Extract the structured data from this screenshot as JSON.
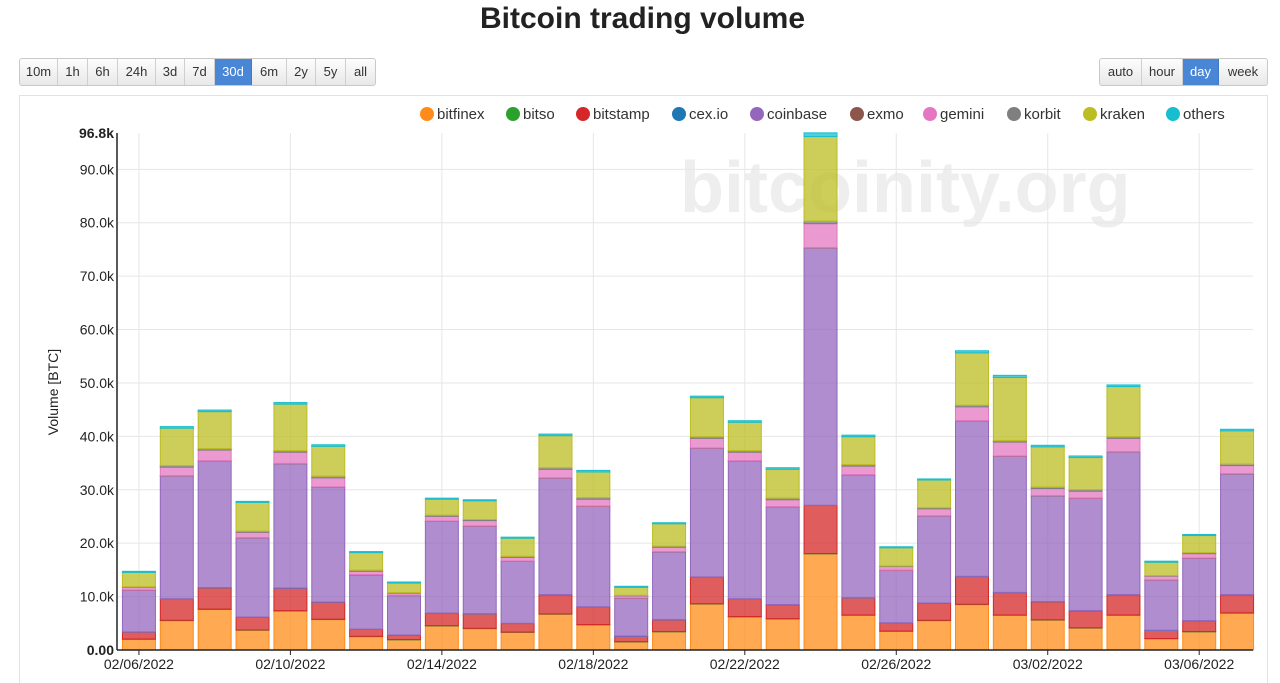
{
  "title": "Bitcoin trading volume",
  "period_buttons": [
    {
      "label": "10m",
      "active": false
    },
    {
      "label": "1h",
      "active": false
    },
    {
      "label": "6h",
      "active": false
    },
    {
      "label": "24h",
      "active": false
    },
    {
      "label": "3d",
      "active": false
    },
    {
      "label": "7d",
      "active": false
    },
    {
      "label": "30d",
      "active": true
    },
    {
      "label": "6m",
      "active": false
    },
    {
      "label": "2y",
      "active": false
    },
    {
      "label": "5y",
      "active": false
    },
    {
      "label": "all",
      "active": false
    }
  ],
  "aggregation_buttons": [
    {
      "label": "auto",
      "active": false
    },
    {
      "label": "hour",
      "active": false
    },
    {
      "label": "day",
      "active": true
    },
    {
      "label": "week",
      "active": false
    }
  ],
  "watermark": "bitcoinity.org",
  "chart_data": {
    "type": "bar",
    "stacked": true,
    "ylabel": "Volume [BTC]",
    "ylim": [
      0,
      96800
    ],
    "y_ticks": [
      "0.00",
      "10.0k",
      "20.0k",
      "30.0k",
      "40.0k",
      "50.0k",
      "60.0k",
      "70.0k",
      "80.0k",
      "90.0k",
      "96.8k"
    ],
    "x_tick_labels": [
      "02/06/2022",
      "02/10/2022",
      "02/14/2022",
      "02/18/2022",
      "02/22/2022",
      "02/26/2022",
      "03/02/2022",
      "03/06/2022"
    ],
    "grid": true,
    "legend_position": "top",
    "categories": [
      "2022-02-06",
      "2022-02-07",
      "2022-02-08",
      "2022-02-09",
      "2022-02-10",
      "2022-02-11",
      "2022-02-12",
      "2022-02-13",
      "2022-02-14",
      "2022-02-15",
      "2022-02-16",
      "2022-02-17",
      "2022-02-18",
      "2022-02-19",
      "2022-02-20",
      "2022-02-21",
      "2022-02-22",
      "2022-02-23",
      "2022-02-24",
      "2022-02-25",
      "2022-02-26",
      "2022-02-27",
      "2022-02-28",
      "2022-03-01",
      "2022-03-02",
      "2022-03-03",
      "2022-03-04",
      "2022-03-05",
      "2022-03-06",
      "2022-03-07"
    ],
    "series": [
      {
        "name": "bitfinex",
        "color": "#ff8c1a",
        "values": [
          2000,
          5500,
          7600,
          3700,
          7300,
          5700,
          2500,
          1900,
          4500,
          4000,
          3300,
          6700,
          4700,
          1500,
          3400,
          8600,
          6200,
          5800,
          18000,
          6500,
          3500,
          5500,
          8500,
          6500,
          5600,
          4100,
          6500,
          2100,
          3400,
          6900
        ]
      },
      {
        "name": "bitso",
        "color": "#2ca02c",
        "values": [
          50,
          50,
          50,
          50,
          50,
          50,
          50,
          50,
          50,
          50,
          50,
          50,
          50,
          50,
          50,
          50,
          50,
          50,
          50,
          50,
          50,
          50,
          50,
          50,
          50,
          50,
          50,
          50,
          50,
          50
        ]
      },
      {
        "name": "bitstamp",
        "color": "#d62728",
        "values": [
          1300,
          4000,
          4000,
          2400,
          4200,
          3200,
          1300,
          800,
          2300,
          2700,
          1600,
          3600,
          3300,
          1000,
          2200,
          5000,
          3300,
          2600,
          9000,
          3200,
          1500,
          3200,
          5200,
          4200,
          3400,
          3200,
          3800,
          1500,
          2000,
          3400
        ]
      },
      {
        "name": "cex.io",
        "color": "#1f77b4",
        "values": [
          30,
          30,
          30,
          30,
          30,
          30,
          30,
          30,
          30,
          30,
          30,
          30,
          30,
          30,
          30,
          30,
          30,
          30,
          30,
          30,
          30,
          30,
          30,
          30,
          30,
          30,
          30,
          30,
          30,
          30
        ]
      },
      {
        "name": "coinbase",
        "color": "#9467bd",
        "values": [
          7800,
          23000,
          23700,
          14800,
          23300,
          21500,
          10200,
          7400,
          17200,
          16400,
          11600,
          21800,
          18800,
          7100,
          12700,
          24100,
          25800,
          18300,
          48200,
          23000,
          9800,
          16300,
          29100,
          25500,
          19800,
          21000,
          26700,
          9400,
          11700,
          22600
        ]
      },
      {
        "name": "exmo",
        "color": "#8c564b",
        "values": [
          50,
          50,
          50,
          50,
          50,
          50,
          50,
          50,
          50,
          50,
          50,
          50,
          50,
          50,
          50,
          50,
          50,
          50,
          50,
          50,
          50,
          50,
          50,
          50,
          50,
          50,
          50,
          50,
          50,
          50
        ]
      },
      {
        "name": "gemini",
        "color": "#e377c2",
        "values": [
          500,
          1600,
          2000,
          1000,
          2100,
          1700,
          600,
          400,
          900,
          1000,
          700,
          1600,
          1300,
          400,
          800,
          1800,
          1600,
          1300,
          4500,
          1600,
          700,
          1300,
          2600,
          2600,
          1300,
          1300,
          2500,
          700,
          800,
          1500
        ]
      },
      {
        "name": "korbit",
        "color": "#7f7f7f",
        "values": [
          100,
          300,
          300,
          200,
          300,
          300,
          200,
          100,
          200,
          200,
          200,
          300,
          300,
          100,
          200,
          300,
          300,
          300,
          500,
          300,
          100,
          200,
          300,
          300,
          300,
          300,
          300,
          100,
          200,
          300
        ]
      },
      {
        "name": "kraken",
        "color": "#bcbd22",
        "values": [
          2700,
          7000,
          6900,
          5400,
          8700,
          5600,
          3300,
          1800,
          3000,
          3500,
          3400,
          6000,
          4800,
          1500,
          4200,
          7300,
          5300,
          5400,
          15800,
          5200,
          3400,
          5200,
          9800,
          11800,
          7500,
          6000,
          9400,
          2500,
          3200,
          6200
        ]
      },
      {
        "name": "others",
        "color": "#17becf",
        "values": [
          200,
          300,
          300,
          200,
          300,
          300,
          200,
          200,
          200,
          200,
          200,
          300,
          300,
          200,
          200,
          300,
          300,
          300,
          700,
          300,
          200,
          200,
          400,
          400,
          300,
          300,
          300,
          200,
          200,
          300
        ]
      }
    ]
  }
}
